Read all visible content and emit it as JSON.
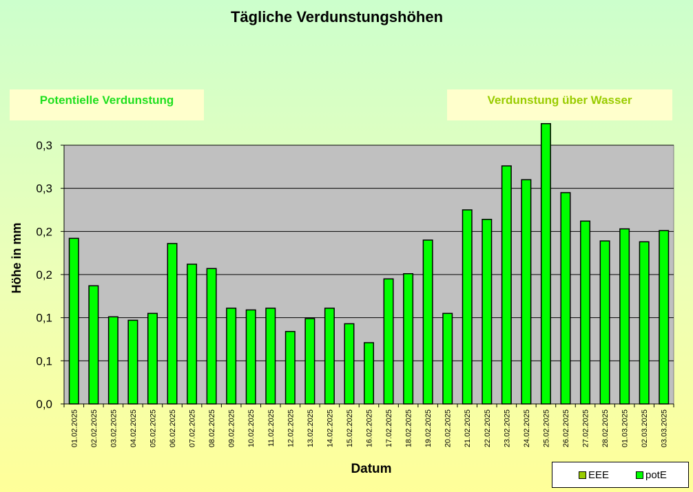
{
  "title": "Tägliche Verdunstungshöhen",
  "box_left": "Potentielle Verdunstung",
  "box_right": "Verdunstung über Wasser",
  "colors": {
    "bar_fill": "#00ff00",
    "legend_eee": "#99cc00",
    "legend_pote": "#00ff00",
    "plot_bg": "#c0c0c0"
  },
  "legend": [
    {
      "label": "EEE",
      "color": "#99cc00"
    },
    {
      "label": "potE",
      "color": "#00ff00"
    }
  ],
  "chart_data": {
    "type": "bar",
    "title": "Tägliche Verdunstungshöhen",
    "xlabel": "Datum",
    "ylabel": "Höhe in mm",
    "ylim": [
      0,
      0.3
    ],
    "grid": true,
    "legend_position": "bottom-right",
    "ytick_labels": [
      "0,0",
      "0,1",
      "0,1",
      "0,2",
      "0,2",
      "0,3",
      "0,3"
    ],
    "categories": [
      "01.02.2025",
      "02.02.2025",
      "03.02.2025",
      "04.02.2025",
      "05.02.2025",
      "06.02.2025",
      "07.02.2025",
      "08.02.2025",
      "09.02.2025",
      "10.02.2025",
      "11.02.2025",
      "12.02.2025",
      "13.02.2025",
      "14.02.2025",
      "15.02.2025",
      "16.02.2025",
      "17.02.2025",
      "18.02.2025",
      "19.02.2025",
      "20.02.2025",
      "21.02.2025",
      "22.02.2025",
      "23.02.2025",
      "24.02.2025",
      "25.02.2025",
      "26.02.2025",
      "27.02.2025",
      "28.02.2025",
      "01.03.2025",
      "02.03.2025",
      "03.03.2025"
    ],
    "series": [
      {
        "name": "potE",
        "values": [
          0.192,
          0.137,
          0.101,
          0.097,
          0.105,
          0.186,
          0.162,
          0.157,
          0.111,
          0.109,
          0.111,
          0.084,
          0.099,
          0.111,
          0.093,
          0.071,
          0.145,
          0.151,
          0.19,
          0.105,
          0.225,
          0.214,
          0.276,
          0.26,
          0.325,
          0.245,
          0.212,
          0.189,
          0.203,
          0.188,
          0.201
        ]
      }
    ]
  }
}
